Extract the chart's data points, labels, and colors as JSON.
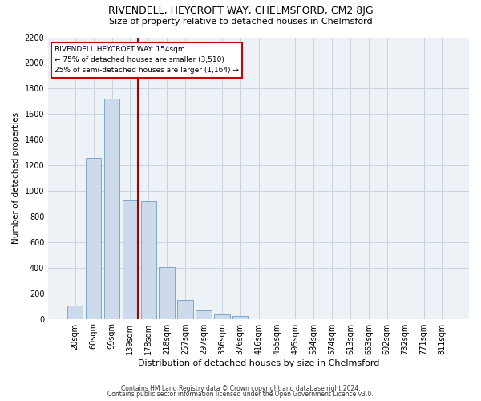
{
  "title": "RIVENDELL, HEYCROFT WAY, CHELMSFORD, CM2 8JG",
  "subtitle": "Size of property relative to detached houses in Chelmsford",
  "xlabel": "Distribution of detached houses by size in Chelmsford",
  "ylabel": "Number of detached properties",
  "bar_color": "#ccdaeb",
  "bar_edge_color": "#7aa8cc",
  "categories": [
    "20sqm",
    "60sqm",
    "99sqm",
    "139sqm",
    "178sqm",
    "218sqm",
    "257sqm",
    "297sqm",
    "336sqm",
    "376sqm",
    "416sqm",
    "455sqm",
    "495sqm",
    "534sqm",
    "574sqm",
    "613sqm",
    "653sqm",
    "692sqm",
    "732sqm",
    "771sqm",
    "811sqm"
  ],
  "values": [
    105,
    1260,
    1720,
    930,
    920,
    405,
    150,
    65,
    38,
    22,
    0,
    0,
    0,
    0,
    0,
    0,
    0,
    0,
    0,
    0,
    0
  ],
  "vline_x": 3.42,
  "vline_color": "#aa0000",
  "annotation_text": "RIVENDELL HEYCROFT WAY: 154sqm\n← 75% of detached houses are smaller (3,510)\n25% of semi-detached houses are larger (1,164) →",
  "annotation_box_color": "#ffffff",
  "annotation_box_edge": "#cc0000",
  "ylim": [
    0,
    2200
  ],
  "yticks": [
    0,
    200,
    400,
    600,
    800,
    1000,
    1200,
    1400,
    1600,
    1800,
    2000,
    2200
  ],
  "grid_color": "#c8d4e0",
  "background_color": "#edf2f7",
  "footer1": "Contains HM Land Registry data © Crown copyright and database right 2024.",
  "footer2": "Contains public sector information licensed under the Open Government Licence v3.0."
}
